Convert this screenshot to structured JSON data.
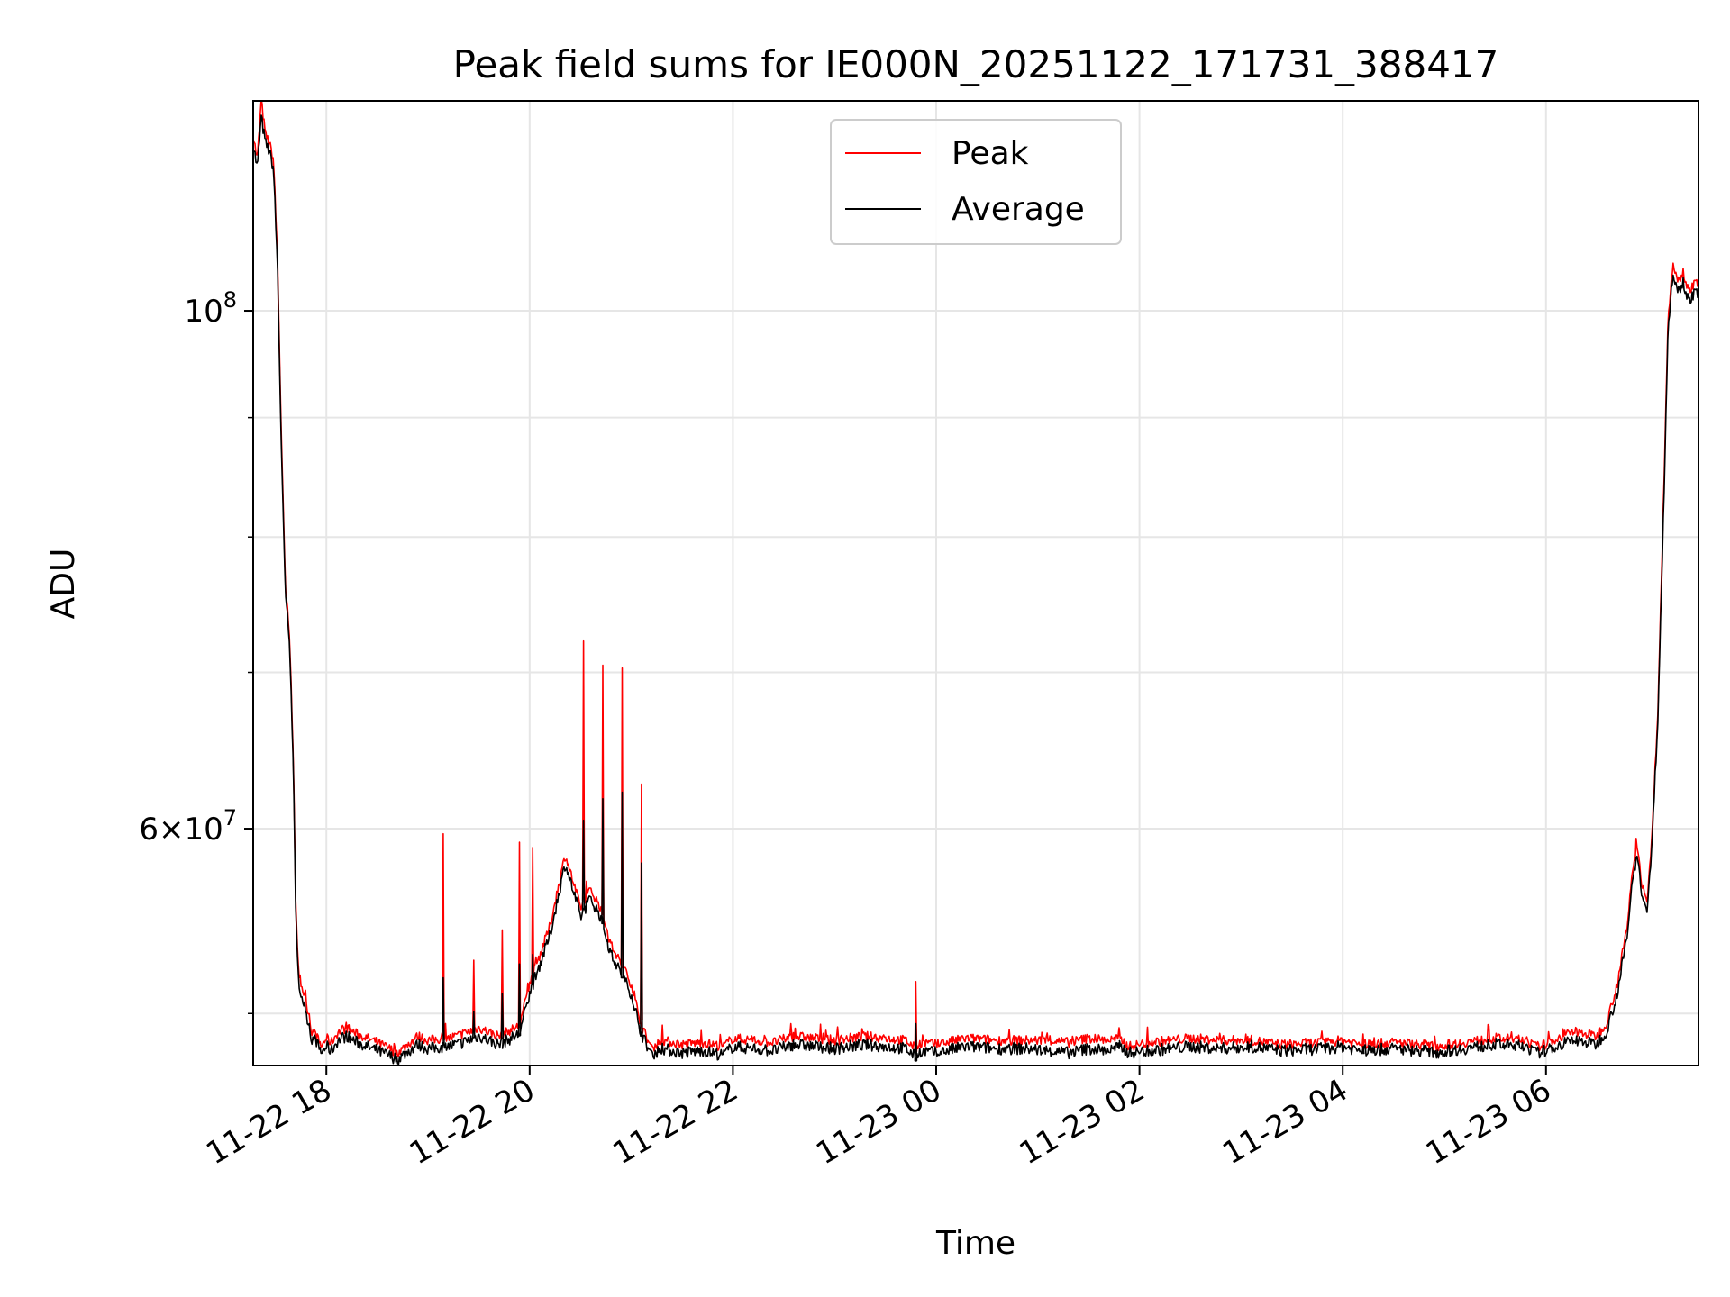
{
  "chart_data": {
    "type": "line",
    "title": "Peak field sums for IE000N_20251122_171731_388417",
    "xlabel": "Time",
    "ylabel": "ADU",
    "y_scale": "log",
    "ylim": [
      47500000,
      123000000
    ],
    "x_range": [
      "11-22 17:17",
      "11-23 07:30"
    ],
    "grid": true,
    "legend_position": "top-center",
    "x_ticks": [
      "11-22 18",
      "11-22 20",
      "11-22 22",
      "11-23 00",
      "11-23 02",
      "11-23 04",
      "11-23 06"
    ],
    "y_ticks": [
      {
        "value": 100000000,
        "base": "10",
        "exp": "8",
        "mant": ""
      },
      {
        "value": 60000000,
        "base": "10",
        "exp": "7",
        "mant": "6"
      }
    ],
    "y_minor_ticks": [
      50000000,
      70000000,
      80000000,
      90000000
    ],
    "series": [
      {
        "name": "Peak",
        "color": "#ff0000"
      },
      {
        "name": "Average",
        "color": "#000000"
      }
    ],
    "x_hours": [
      17.28,
      17.32,
      17.36,
      17.4,
      17.44,
      17.48,
      17.52,
      17.56,
      17.6,
      17.62,
      17.65,
      17.68,
      17.7,
      17.72,
      17.75,
      17.78,
      17.8,
      17.83,
      17.85,
      17.88,
      17.9,
      17.92,
      17.95,
      18.0,
      18.05,
      18.1,
      18.15,
      18.2,
      18.3,
      18.5,
      18.7,
      18.9,
      19.0,
      19.2,
      19.35,
      19.5,
      19.7,
      19.9,
      20.0,
      20.2,
      20.35,
      20.5,
      20.6,
      20.7,
      20.8,
      20.9,
      21.0,
      21.1,
      21.2,
      21.3,
      21.5,
      21.7,
      21.9,
      22.0,
      22.2,
      22.4,
      22.6,
      22.8,
      23.0,
      23.3,
      23.5,
      23.7,
      23.8,
      23.85,
      24.0,
      24.3,
      24.6,
      24.9,
      25.1,
      25.3,
      25.5,
      25.7,
      25.8,
      25.9,
      26.1,
      26.3,
      26.5,
      26.8,
      27.1,
      27.4,
      27.8,
      28.0,
      28.2,
      28.5,
      28.8,
      28.9,
      29.2,
      29.5,
      29.8,
      29.9,
      30.0,
      30.2,
      30.3,
      30.4,
      30.5,
      30.6,
      30.7,
      30.8,
      30.85,
      30.9,
      30.95,
      31.0,
      31.05,
      31.1,
      31.15,
      31.2,
      31.25,
      31.3,
      31.35,
      31.4,
      31.5
    ],
    "avg": [
      118000000,
      115000000,
      121000000,
      118000000,
      117000000,
      115000000,
      104000000,
      86000000,
      75000000,
      74000000,
      70000000,
      62000000,
      55000000,
      52000000,
      51000000,
      50500000,
      50000000,
      49500000,
      48800000,
      48700000,
      48700000,
      48400000,
      48100000,
      48400000,
      48200000,
      48600000,
      48800000,
      48900000,
      48600000,
      48200000,
      47800000,
      48500000,
      48300000,
      48400000,
      48600000,
      48900000,
      48500000,
      49000000,
      51000000,
      54000000,
      58000000,
      55000000,
      56000000,
      55000000,
      53000000,
      52000000,
      51000000,
      49000000,
      48000000,
      48300000,
      48100000,
      48200000,
      48000000,
      48400000,
      48300000,
      48200000,
      48500000,
      48400000,
      48300000,
      48500000,
      48400000,
      48300000,
      47900000,
      48200000,
      48100000,
      48400000,
      48300000,
      48300000,
      48200000,
      48100000,
      48300000,
      48200000,
      48400000,
      48100000,
      48200000,
      48300000,
      48400000,
      48300000,
      48400000,
      48200000,
      48300000,
      48400000,
      48200000,
      48300000,
      48200000,
      48100000,
      48300000,
      48500000,
      48400000,
      48100000,
      48200000,
      48600000,
      48700000,
      48600000,
      48500000,
      49200000,
      51000000,
      54000000,
      57000000,
      58500000,
      56000000,
      55500000,
      60000000,
      67000000,
      80000000,
      98000000,
      104000000,
      102000000,
      103000000,
      101000000,
      102000000
    ],
    "peak": [
      119000000,
      116000000,
      123000000,
      119000000,
      118000000,
      116000000,
      105000000,
      87000000,
      75500000,
      74500000,
      70500000,
      62500000,
      55500000,
      52500000,
      51500000,
      51000000,
      50500000,
      50000000,
      49200000,
      49000000,
      49000000,
      48700000,
      48400000,
      48800000,
      48600000,
      49000000,
      49200000,
      49300000,
      49000000,
      48600000,
      48100000,
      48900000,
      48700000,
      48800000,
      49000000,
      49300000,
      48900000,
      49400000,
      51500000,
      54500000,
      58500000,
      55500000,
      56500000,
      55500000,
      53500000,
      52500000,
      51500000,
      49400000,
      48300000,
      48700000,
      48500000,
      48600000,
      48400000,
      48800000,
      48700000,
      48600000,
      48900000,
      48800000,
      48700000,
      48900000,
      48800000,
      48700000,
      48300000,
      48600000,
      48500000,
      48800000,
      48700000,
      48700000,
      48700000,
      48600000,
      48800000,
      48700000,
      48800000,
      48400000,
      48600000,
      48700000,
      48800000,
      48700000,
      48700000,
      48500000,
      48600000,
      48700000,
      48500000,
      48600000,
      48500000,
      48400000,
      48600000,
      48800000,
      48700000,
      48400000,
      48500000,
      49000000,
      49100000,
      49000000,
      48900000,
      49600000,
      51500000,
      54500000,
      57500000,
      59000000,
      56500000,
      56000000,
      60500000,
      67500000,
      81000000,
      99000000,
      105000000,
      103000000,
      104000000,
      102000000,
      103000000
    ],
    "spikes": [
      {
        "x": 19.15,
        "peak": 59700000,
        "avg": 51800000
      },
      {
        "x": 19.45,
        "peak": 52700000,
        "avg": 50100000
      },
      {
        "x": 19.73,
        "peak": 54300000,
        "avg": 51000000
      },
      {
        "x": 19.9,
        "peak": 59200000,
        "avg": 52500000
      },
      {
        "x": 20.03,
        "peak": 58900000,
        "avg": 53000000
      },
      {
        "x": 20.53,
        "peak": 72200000,
        "avg": 60500000
      },
      {
        "x": 20.72,
        "peak": 70500000,
        "avg": 61800000
      },
      {
        "x": 20.91,
        "peak": 70300000,
        "avg": 62200000
      },
      {
        "x": 21.1,
        "peak": 62700000,
        "avg": 58000000
      },
      {
        "x": 22.57,
        "peak": 49500000,
        "avg": 48200000
      },
      {
        "x": 23.8,
        "peak": 51600000,
        "avg": 49500000
      },
      {
        "x": 25.8,
        "peak": 49300000,
        "avg": 48300000
      },
      {
        "x": 28.2,
        "peak": 49000000,
        "avg": 48400000
      }
    ],
    "noise_amplitude": 0.006
  }
}
